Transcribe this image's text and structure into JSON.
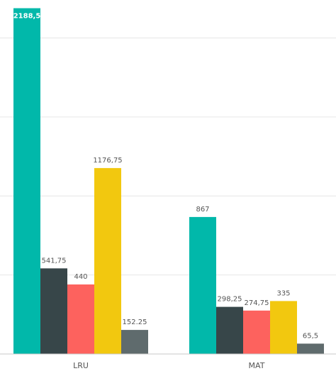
{
  "chart_data": {
    "type": "bar",
    "categories": [
      "LRU",
      "MAT"
    ],
    "series": [
      {
        "color": "#01b8aa",
        "values": [
          2188.5,
          867
        ],
        "labels": [
          "2188,5",
          "867"
        ]
      },
      {
        "color": "#374649",
        "values": [
          541.75,
          298.25
        ],
        "labels": [
          "541,75",
          "298,25"
        ]
      },
      {
        "color": "#fd625e",
        "values": [
          440,
          274.75
        ],
        "labels": [
          "440",
          "274,75"
        ]
      },
      {
        "color": "#f2c80f",
        "values": [
          1176.75,
          335
        ],
        "labels": [
          "1176,75",
          "335"
        ]
      },
      {
        "color": "#5f6b6d",
        "values": [
          152.25,
          65.5
        ],
        "labels": [
          "152.25",
          "65,5"
        ]
      }
    ],
    "ylim": [
      0,
      2200
    ],
    "grid": true,
    "title": "",
    "xlabel": "",
    "ylabel": ""
  }
}
